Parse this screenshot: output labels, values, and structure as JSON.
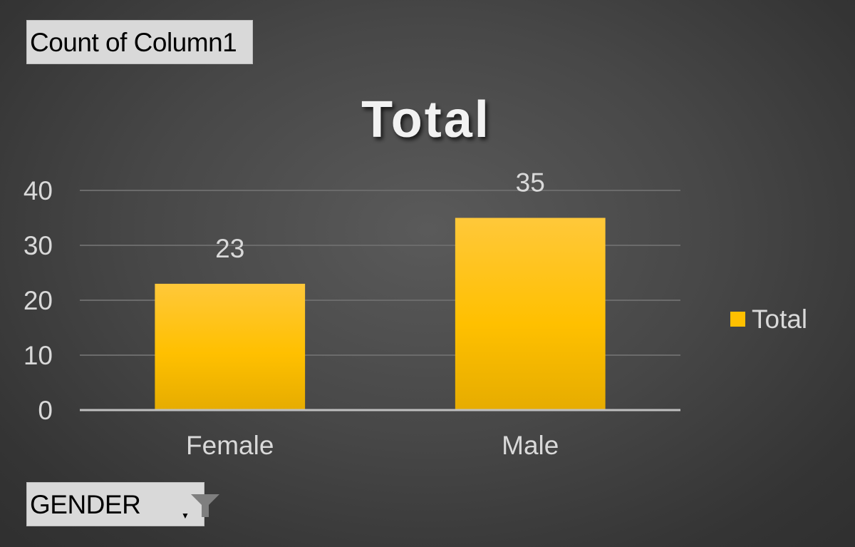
{
  "value_field_button": {
    "label": "Count of Column1"
  },
  "axis_field_button": {
    "label": "GENDER",
    "icon": "filter-icon"
  },
  "colors": {
    "bar": "#ffc000",
    "bar_dark": "#e6ad00",
    "gridline": "#6b6b6b",
    "axis_line": "#bfbfbf",
    "text": "#d9d9d9"
  },
  "chart_data": {
    "type": "bar",
    "title": "Total",
    "categories": [
      "Female",
      "Male"
    ],
    "series": [
      {
        "name": "Total",
        "values": [
          23,
          35
        ]
      }
    ],
    "ylim": [
      0,
      40
    ],
    "yticks": [
      0,
      10,
      20,
      30,
      40
    ],
    "grid": true,
    "legend_position": "right",
    "data_labels": true
  }
}
